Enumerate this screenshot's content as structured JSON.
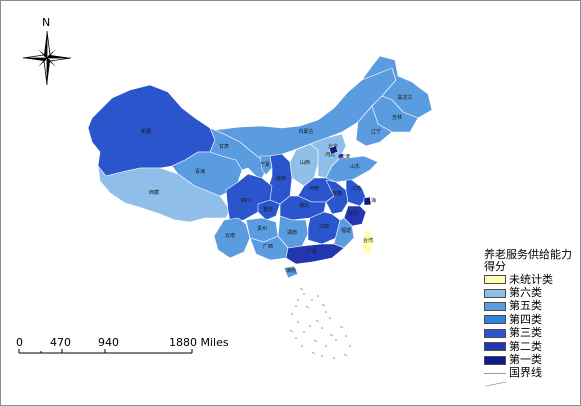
{
  "compass": {
    "north_label": "N"
  },
  "legend": {
    "title": "养老服务供给能力得分",
    "items": [
      {
        "label": "未统计类",
        "color": "#ffffb4"
      },
      {
        "label": "第六类",
        "color": "#8fbfe8"
      },
      {
        "label": "第五类",
        "color": "#5b9be0"
      },
      {
        "label": "第四类",
        "color": "#2f82e0"
      },
      {
        "label": "第三类",
        "color": "#2a55cc"
      },
      {
        "label": "第二类",
        "color": "#2236b0"
      },
      {
        "label": "第一类",
        "color": "#101a8a"
      }
    ],
    "border_label": "国界线",
    "border_color": "#999999"
  },
  "scalebar": {
    "ticks": [
      "0",
      "470",
      "940"
    ],
    "end_label": "1880 Miles"
  },
  "provinces": [
    {
      "name": "新疆",
      "class": "第三类"
    },
    {
      "name": "西藏",
      "class": "第六类"
    },
    {
      "name": "青海",
      "class": "第五类"
    },
    {
      "name": "甘肃",
      "class": "第五类"
    },
    {
      "name": "内蒙古",
      "class": "第五类"
    },
    {
      "name": "黑龙江",
      "class": "第五类"
    },
    {
      "name": "吉林",
      "class": "第五类"
    },
    {
      "name": "辽宁",
      "class": "第五类"
    },
    {
      "name": "宁夏",
      "class": "第五类"
    },
    {
      "name": "陕西",
      "class": "第三类"
    },
    {
      "name": "山西",
      "class": "第六类"
    },
    {
      "name": "河北",
      "class": "第六类"
    },
    {
      "name": "北京",
      "class": "第一类"
    },
    {
      "name": "天津",
      "class": "第二类"
    },
    {
      "name": "山东",
      "class": "第五类"
    },
    {
      "name": "河南",
      "class": "第三类"
    },
    {
      "name": "四川",
      "class": "第三类"
    },
    {
      "name": "重庆",
      "class": "第三类"
    },
    {
      "name": "湖北",
      "class": "第三类"
    },
    {
      "name": "安徽",
      "class": "第三类"
    },
    {
      "name": "江苏",
      "class": "第三类"
    },
    {
      "name": "上海",
      "class": "第一类"
    },
    {
      "name": "浙江",
      "class": "第二类"
    },
    {
      "name": "云南",
      "class": "第五类"
    },
    {
      "name": "贵州",
      "class": "第五类"
    },
    {
      "name": "湖南",
      "class": "第五类"
    },
    {
      "name": "江西",
      "class": "第三类"
    },
    {
      "name": "福建",
      "class": "第五类"
    },
    {
      "name": "广西",
      "class": "第五类"
    },
    {
      "name": "广东",
      "class": "第二类"
    },
    {
      "name": "海南",
      "class": "第五类"
    },
    {
      "name": "台湾",
      "class": "未统计类"
    }
  ]
}
